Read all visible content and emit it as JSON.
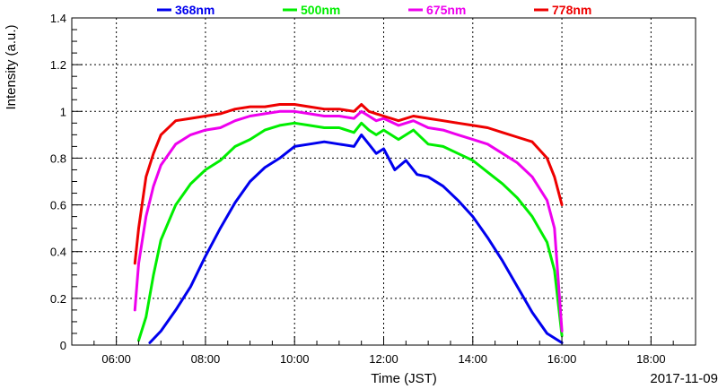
{
  "chart_data": {
    "type": "line",
    "xlabel": "Time (JST)",
    "ylabel": "Intensity (a.u.)",
    "date_label": "2017-11-09",
    "xlim": [
      "05:00",
      "19:00"
    ],
    "ylim": [
      0,
      1.4
    ],
    "x_ticks": [
      "06:00",
      "08:00",
      "10:00",
      "12:00",
      "14:00",
      "16:00",
      "18:00"
    ],
    "y_ticks": [
      "0",
      "0.2",
      "0.4",
      "0.6",
      "0.8",
      "1",
      "1.2",
      "1.4"
    ],
    "grid": true,
    "legend_position": "top",
    "series": [
      {
        "name": "368nm",
        "color": "#0000ee",
        "x": [
          "06:45",
          "07:00",
          "07:20",
          "07:40",
          "08:00",
          "08:20",
          "08:40",
          "09:00",
          "09:20",
          "09:40",
          "10:00",
          "10:20",
          "10:40",
          "11:00",
          "11:20",
          "11:30",
          "11:40",
          "11:50",
          "12:00",
          "12:15",
          "12:30",
          "12:45",
          "13:00",
          "13:20",
          "13:40",
          "14:00",
          "14:20",
          "14:40",
          "15:00",
          "15:20",
          "15:40",
          "16:00"
        ],
        "values": [
          0.01,
          0.06,
          0.15,
          0.25,
          0.38,
          0.5,
          0.61,
          0.7,
          0.76,
          0.8,
          0.85,
          0.86,
          0.87,
          0.86,
          0.85,
          0.9,
          0.86,
          0.82,
          0.84,
          0.75,
          0.79,
          0.73,
          0.72,
          0.68,
          0.62,
          0.55,
          0.46,
          0.36,
          0.25,
          0.14,
          0.05,
          0.01
        ]
      },
      {
        "name": "500nm",
        "color": "#00ee00",
        "x": [
          "06:30",
          "06:40",
          "06:50",
          "07:00",
          "07:20",
          "07:40",
          "08:00",
          "08:20",
          "08:40",
          "09:00",
          "09:20",
          "09:40",
          "10:00",
          "10:20",
          "10:40",
          "11:00",
          "11:20",
          "11:30",
          "11:40",
          "11:50",
          "12:00",
          "12:20",
          "12:40",
          "13:00",
          "13:20",
          "13:40",
          "14:00",
          "14:20",
          "14:40",
          "15:00",
          "15:20",
          "15:40",
          "15:50",
          "16:00"
        ],
        "values": [
          0.02,
          0.12,
          0.3,
          0.45,
          0.6,
          0.69,
          0.75,
          0.79,
          0.85,
          0.88,
          0.92,
          0.94,
          0.95,
          0.94,
          0.93,
          0.93,
          0.91,
          0.95,
          0.92,
          0.9,
          0.92,
          0.88,
          0.92,
          0.86,
          0.85,
          0.82,
          0.79,
          0.74,
          0.69,
          0.63,
          0.55,
          0.44,
          0.32,
          0.04
        ]
      },
      {
        "name": "675nm",
        "color": "#ee00ee",
        "x": [
          "06:25",
          "06:30",
          "06:40",
          "06:50",
          "07:00",
          "07:20",
          "07:40",
          "08:00",
          "08:20",
          "08:40",
          "09:00",
          "09:20",
          "09:40",
          "10:00",
          "10:20",
          "10:40",
          "11:00",
          "11:20",
          "11:30",
          "11:40",
          "11:50",
          "12:00",
          "12:20",
          "12:40",
          "13:00",
          "13:20",
          "13:40",
          "14:00",
          "14:20",
          "14:40",
          "15:00",
          "15:20",
          "15:40",
          "15:50",
          "16:00"
        ],
        "values": [
          0.15,
          0.35,
          0.55,
          0.68,
          0.77,
          0.86,
          0.9,
          0.92,
          0.93,
          0.96,
          0.98,
          0.99,
          1.0,
          1.0,
          0.99,
          0.98,
          0.98,
          0.97,
          1.0,
          0.98,
          0.96,
          0.97,
          0.94,
          0.96,
          0.93,
          0.92,
          0.9,
          0.88,
          0.86,
          0.82,
          0.78,
          0.72,
          0.62,
          0.5,
          0.06
        ]
      },
      {
        "name": "778nm",
        "color": "#ee0000",
        "x": [
          "06:25",
          "06:30",
          "06:40",
          "06:50",
          "07:00",
          "07:20",
          "07:40",
          "08:00",
          "08:20",
          "08:40",
          "09:00",
          "09:20",
          "09:40",
          "10:00",
          "10:20",
          "10:40",
          "11:00",
          "11:20",
          "11:30",
          "11:40",
          "11:50",
          "12:00",
          "12:20",
          "12:40",
          "13:00",
          "13:20",
          "13:40",
          "14:00",
          "14:20",
          "14:40",
          "15:00",
          "15:20",
          "15:40",
          "15:50",
          "16:00"
        ],
        "values": [
          0.35,
          0.5,
          0.72,
          0.82,
          0.9,
          0.96,
          0.97,
          0.98,
          0.99,
          1.01,
          1.02,
          1.02,
          1.03,
          1.03,
          1.02,
          1.01,
          1.01,
          1.0,
          1.03,
          1.0,
          0.99,
          0.98,
          0.96,
          0.98,
          0.97,
          0.96,
          0.95,
          0.94,
          0.93,
          0.91,
          0.89,
          0.87,
          0.8,
          0.72,
          0.6
        ]
      }
    ]
  }
}
